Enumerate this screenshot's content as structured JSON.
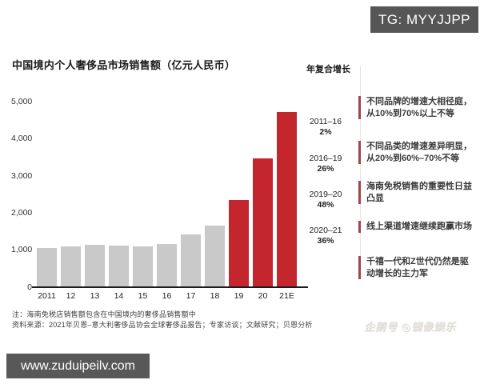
{
  "badges": {
    "tg": "TG: MYYJJPP",
    "site": "www.zuduipeilv.com",
    "publisher_watermark": "企鹅号 ◎镜像娱乐"
  },
  "chart_data": {
    "type": "bar",
    "title": "中国境内个人奢侈品市场销售额（亿元人民币）",
    "categories": [
      "2011",
      "12",
      "13",
      "14",
      "15",
      "16",
      "17",
      "18",
      "19",
      "20",
      "21E"
    ],
    "values": [
      1050,
      1100,
      1130,
      1120,
      1090,
      1150,
      1420,
      1660,
      2340,
      3460,
      4710
    ],
    "ylim": [
      0,
      5000
    ],
    "y_tick_values": [
      5000,
      4000,
      3000,
      2000,
      1000,
      0
    ],
    "y_tick_labels": [
      "5,000",
      "4,000",
      "3,000",
      "2,000",
      "1,000",
      "0"
    ],
    "highlight_from_index": 8,
    "bar_color_default": "#c9c9c9",
    "bar_color_highlight": "#c4262e",
    "grid": false,
    "xlabel": "",
    "ylabel": ""
  },
  "cagr": {
    "header": "年复合增长",
    "entries": [
      {
        "period": "2011–16",
        "value": "2%"
      },
      {
        "period": "2016–19",
        "value": "26%"
      },
      {
        "period": "2019–20",
        "value": "48%"
      },
      {
        "period": "2020–21",
        "value": "36%"
      }
    ]
  },
  "insights": [
    "不同品牌的增速大相径庭，从10%到70%以上不等",
    "不同品类的增速差异明显，从20%到60%–70%不等",
    "海南免税销售的重要性日益凸显",
    "线上渠道增速继续跑赢市场",
    "千禧一代和Z世代仍然是驱动增长的主力军"
  ],
  "notes": {
    "note": "注：海南免税店销售额包含在中国境内的奢侈品销售额中",
    "source": "资料来源：2021年贝恩–意大利奢侈品协会全球奢侈品报告；专家访谈；文献研究；贝恩分析"
  },
  "accent_colors": {
    "insight_marker": "#9d464c",
    "badge_background": "#565656"
  }
}
